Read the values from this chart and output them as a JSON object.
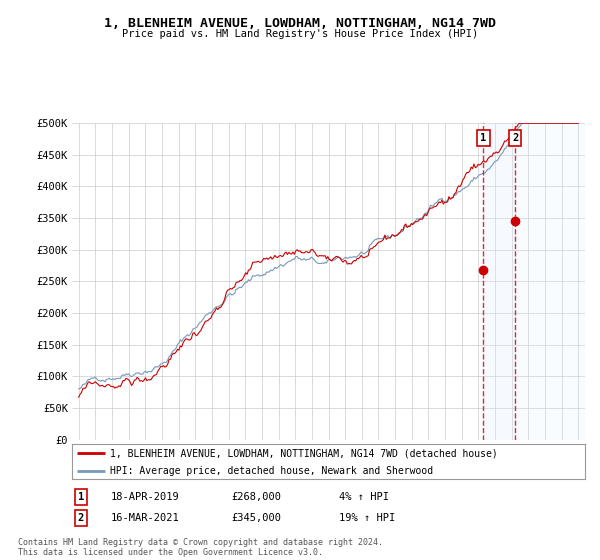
{
  "title": "1, BLENHEIM AVENUE, LOWDHAM, NOTTINGHAM, NG14 7WD",
  "subtitle": "Price paid vs. HM Land Registry's House Price Index (HPI)",
  "ytick_values": [
    0,
    50000,
    100000,
    150000,
    200000,
    250000,
    300000,
    350000,
    400000,
    450000,
    500000
  ],
  "x_start_year": 1995,
  "x_end_year": 2025,
  "red_line_color": "#cc0000",
  "blue_line_color": "#7799bb",
  "blue_fill_color": "#ddeeff",
  "vline_color": "#cc0000",
  "legend_label1": "1, BLENHEIM AVENUE, LOWDHAM, NOTTINGHAM, NG14 7WD (detached house)",
  "legend_label2": "HPI: Average price, detached house, Newark and Sherwood",
  "annotation1_num": "1",
  "annotation1_date": "18-APR-2019",
  "annotation1_price": "£268,000",
  "annotation1_hpi": "4% ↑ HPI",
  "annotation2_num": "2",
  "annotation2_date": "16-MAR-2021",
  "annotation2_price": "£345,000",
  "annotation2_hpi": "19% ↑ HPI",
  "footer": "Contains HM Land Registry data © Crown copyright and database right 2024.\nThis data is licensed under the Open Government Licence v3.0.",
  "sale1_year": 2019.3,
  "sale1_price": 268000,
  "sale2_year": 2021.2,
  "sale2_price": 345000,
  "background_color": "#ffffff",
  "grid_color": "#cccccc"
}
